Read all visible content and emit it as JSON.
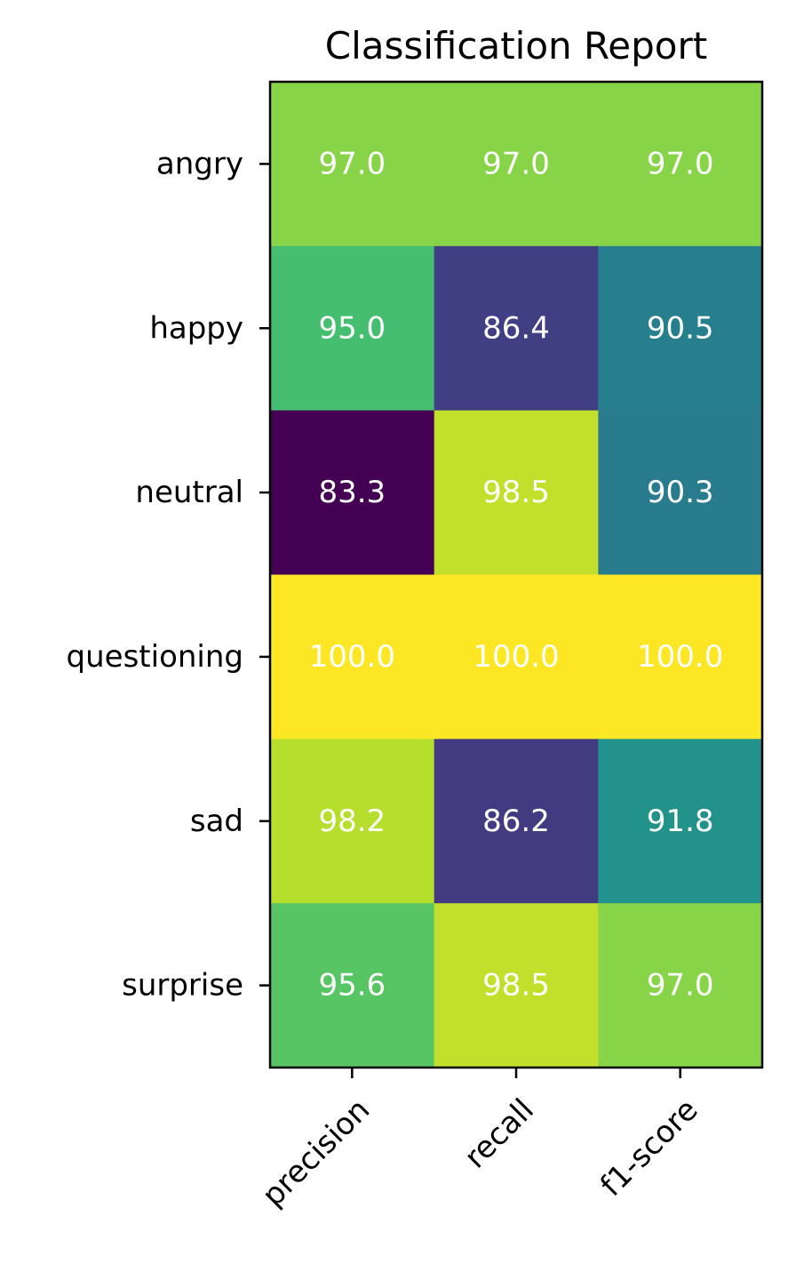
{
  "chart_data": {
    "type": "heatmap",
    "title": "Classification Report",
    "xlabel": "",
    "ylabel": "",
    "x_categories": [
      "precision",
      "recall",
      "f1-score"
    ],
    "y_categories": [
      "angry",
      "happy",
      "neutral",
      "questioning",
      "sad",
      "surprise"
    ],
    "values": [
      [
        97.0,
        97.0,
        97.0
      ],
      [
        95.0,
        86.4,
        90.5
      ],
      [
        83.3,
        98.5,
        90.3
      ],
      [
        100.0,
        100.0,
        100.0
      ],
      [
        98.2,
        86.2,
        91.8
      ],
      [
        95.6,
        98.5,
        97.0
      ]
    ],
    "value_labels": [
      [
        "97.0",
        "97.0",
        "97.0"
      ],
      [
        "95.0",
        "86.4",
        "90.5"
      ],
      [
        "83.3",
        "98.5",
        "90.3"
      ],
      [
        "100.0",
        "100.0",
        "100.0"
      ],
      [
        "98.2",
        "86.2",
        "91.8"
      ],
      [
        "95.6",
        "98.5",
        "97.0"
      ]
    ],
    "colormap": "viridis",
    "color_range": [
      83.3,
      100.0
    ],
    "grid": false,
    "x_tick_rotation_deg": 45
  }
}
